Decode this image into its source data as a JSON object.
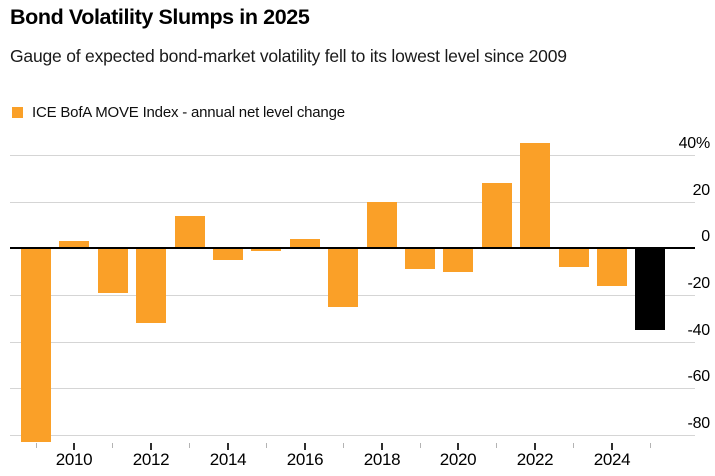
{
  "chart_data": {
    "type": "bar",
    "title": "Bond Volatility Slumps in 2025",
    "subtitle": "Gauge of expected bond-market volatility fell to its lowest level since 2009",
    "series": [
      {
        "name": "ICE BofA MOVE Index - annual net level change",
        "values": [
          -83,
          3,
          -19,
          -32,
          14,
          -5,
          -1,
          4,
          -25,
          20,
          -9,
          -10,
          28,
          45,
          -8,
          -16,
          -35
        ]
      }
    ],
    "categories": [
      2009,
      2010,
      2011,
      2012,
      2013,
      2014,
      2015,
      2016,
      2017,
      2018,
      2019,
      2020,
      2021,
      2022,
      2023,
      2024,
      2025
    ],
    "unit": "%",
    "ylim": [
      -84,
      46.5
    ],
    "yticks": [
      40,
      20,
      0,
      -20,
      -40,
      -60,
      -80
    ],
    "ytick_labels": [
      "40%",
      "20",
      "0",
      "-20",
      "-40",
      "-60",
      "-80"
    ],
    "xtick_labels": [
      "2010",
      "2012",
      "2014",
      "2016",
      "2018",
      "2020",
      "2022",
      "2024"
    ],
    "grid": "horizontal",
    "legend_position": "top-left",
    "colors": {
      "bar": "#FAA028",
      "highlight_bar": "#000000",
      "highlight_year": 2025,
      "zero_line": "#000000",
      "gridline": "#d5d5d5"
    }
  }
}
